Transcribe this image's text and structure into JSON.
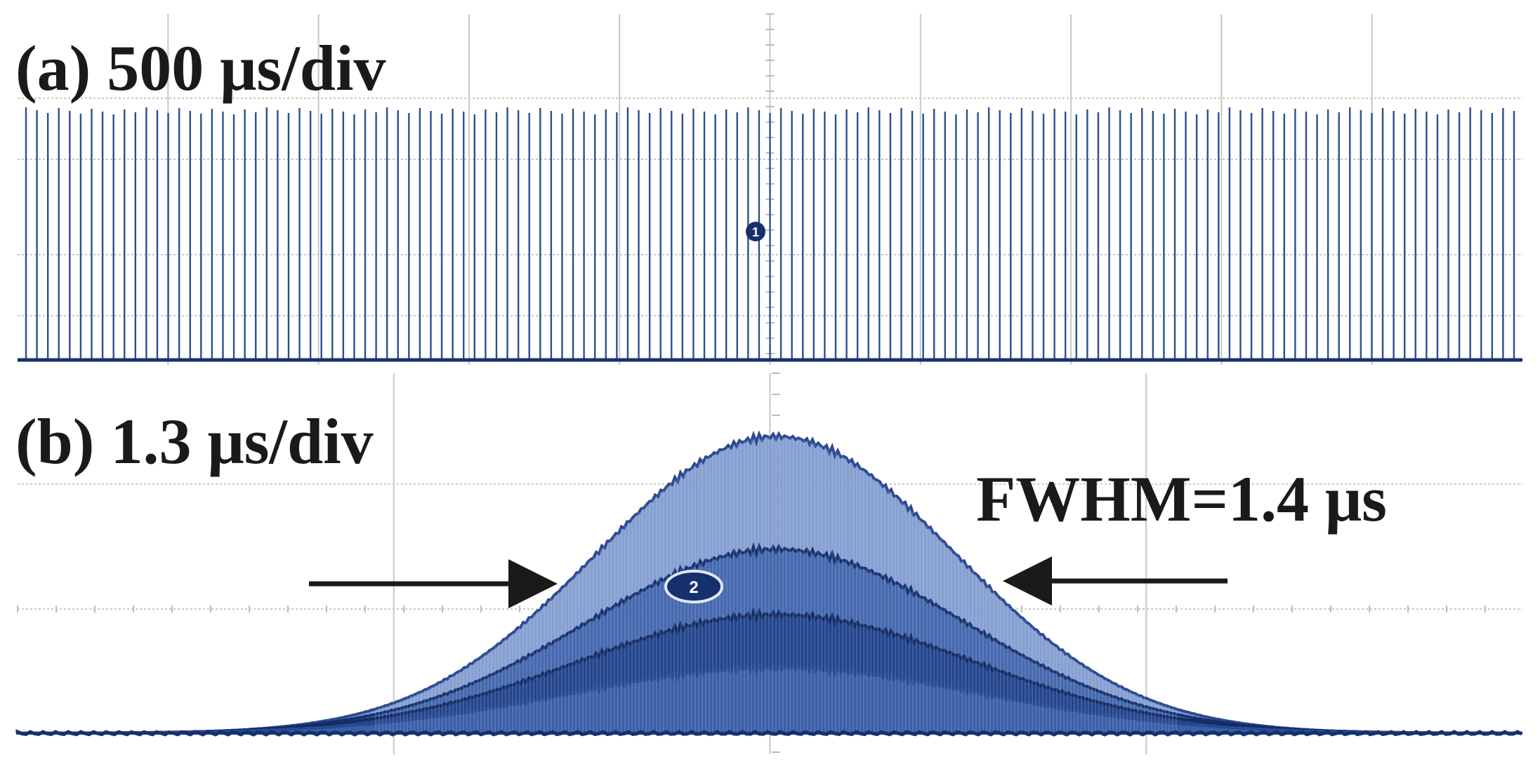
{
  "panel_a": {
    "label": "(a) 500 μs/div",
    "channel_marker": "1"
  },
  "panel_b": {
    "label": "(b) 1.3 μs/div",
    "fwhm_label": "FWHM=1.4 μs",
    "channel_marker": "2"
  },
  "colors": {
    "trace": "#2c4f8f",
    "trace_dark": "#16306e",
    "trace_light": "#8aa6d6",
    "grid": "#c8c8c8",
    "arrow": "#1a1a1a"
  },
  "chart_data": [
    {
      "type": "line",
      "title": "(a) 500 μs/div",
      "x_unit": "μs",
      "time_per_div_us": 500,
      "x_divisions": 10,
      "xlim_us": [
        0,
        5000
      ],
      "grid": true,
      "pulse_count": 137,
      "pulse_relative_amplitude": 1.0,
      "baseline_relative_amplitude": 0.0
    },
    {
      "type": "line",
      "title": "(b) 1.3 μs/div",
      "x_unit": "μs",
      "time_per_div_us": 1.3,
      "x_divisions": 10,
      "grid": true,
      "pulse_center_us": 6.5,
      "fwhm_us": 1.4,
      "annotation": "FWHM=1.4 μs",
      "envelopes": [
        {
          "relative_peak": 1.0
        },
        {
          "relative_peak": 0.62
        },
        {
          "relative_peak": 0.4
        },
        {
          "relative_peak": 0.22
        }
      ]
    }
  ]
}
